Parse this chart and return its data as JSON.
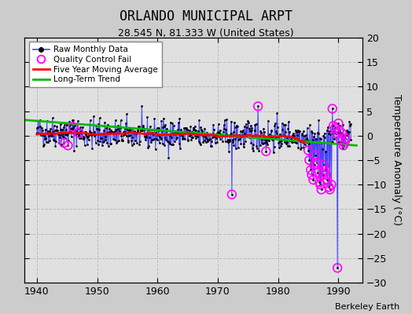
{
  "title": "ORLANDO MUNICIPAL ARPT",
  "subtitle": "28.545 N, 81.333 W (United States)",
  "credit": "Berkeley Earth",
  "ylabel": "Temperature Anomaly (°C)",
  "xlim": [
    1938,
    1994
  ],
  "ylim": [
    -30,
    20
  ],
  "yticks": [
    -30,
    -25,
    -20,
    -15,
    -10,
    -5,
    0,
    5,
    10,
    15,
    20
  ],
  "xticks": [
    1940,
    1950,
    1960,
    1970,
    1980,
    1990
  ],
  "bg_color": "#cccccc",
  "plot_bg_color": "#e0e0e0",
  "raw_color": "#4444ff",
  "dot_color": "#000000",
  "qc_color": "#ff00ff",
  "ma_color": "#ff0000",
  "trend_color": "#00bb00",
  "seed": 42,
  "long_term_trend_x": [
    1938,
    1993
  ],
  "long_term_trend_y": [
    3.2,
    -2.0
  ]
}
